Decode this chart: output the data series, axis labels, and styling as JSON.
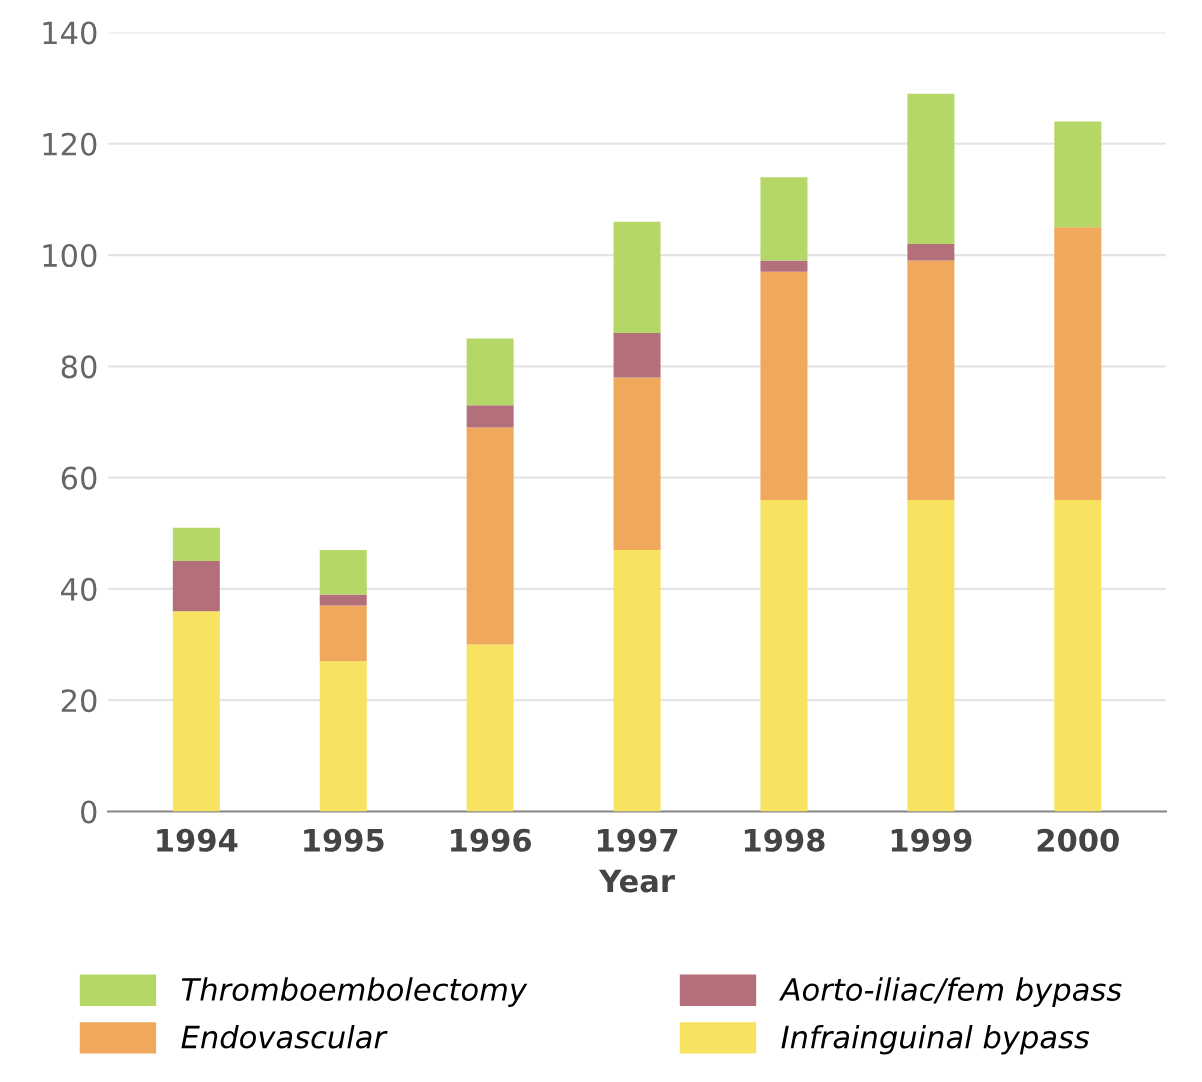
{
  "chart_data": {
    "type": "bar",
    "stacked": true,
    "xlabel": "Year",
    "categories": [
      "1994",
      "1995",
      "1996",
      "1997",
      "1998",
      "1999",
      "2000"
    ],
    "series": [
      {
        "name": "Infrainguinal bypass",
        "color": "#f7e35f",
        "values": [
          36,
          27,
          30,
          47,
          56,
          56,
          56
        ]
      },
      {
        "name": "Endovascular",
        "color": "#f0a85c",
        "values": [
          0,
          10,
          39,
          31,
          41,
          43,
          49
        ]
      },
      {
        "name": "Aorto-iliac/fem bypass",
        "color": "#b4707a",
        "values": [
          9,
          2,
          4,
          8,
          2,
          3,
          0
        ]
      },
      {
        "name": "Thromboembolectomy",
        "color": "#b5d767",
        "values": [
          6,
          8,
          12,
          20,
          15,
          27,
          19
        ]
      }
    ],
    "ylim": [
      0,
      140
    ],
    "yticks": [
      0,
      20,
      40,
      60,
      80,
      100,
      120,
      140
    ],
    "grid": "y",
    "legend": "bottom"
  }
}
